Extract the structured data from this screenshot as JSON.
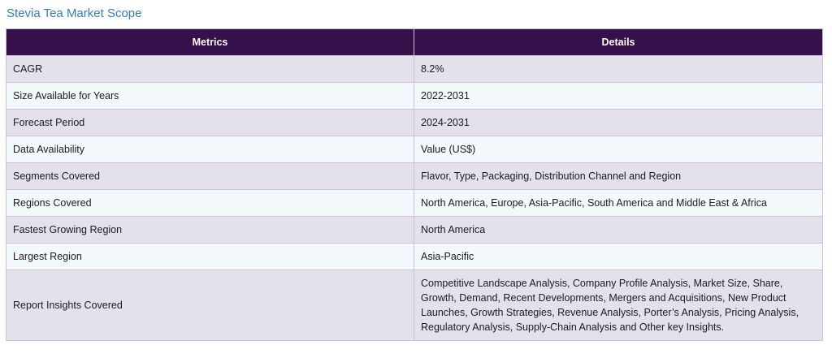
{
  "page": {
    "title": "Stevia Tea Market Scope"
  },
  "table": {
    "headers": [
      "Metrics",
      "Details"
    ],
    "rows": [
      {
        "metric": "CAGR",
        "detail": "8.2%"
      },
      {
        "metric": "Size Available for Years",
        "detail": "2022-2031"
      },
      {
        "metric": "Forecast Period",
        "detail": "2024-2031"
      },
      {
        "metric": "Data Availability",
        "detail": "Value (US$)"
      },
      {
        "metric": "Segments Covered",
        "detail": "Flavor, Type, Packaging, Distribution Channel and Region"
      },
      {
        "metric": "Regions Covered",
        "detail": "North America, Europe, Asia-Pacific, South America and Middle East & Africa"
      },
      {
        "metric": "Fastest Growing Region",
        "detail": "North America"
      },
      {
        "metric": "Largest Region",
        "detail": "Asia-Pacific"
      },
      {
        "metric": "Report Insights Covered",
        "detail": "Competitive Landscape Analysis, Company Profile Analysis, Market Size, Share, Growth, Demand, Recent Developments, Mergers and Acquisitions, New Product Launches, Growth Strategies, Revenue Analysis, Porter’s Analysis, Pricing Analysis, Regulatory Analysis, Supply-Chain Analysis and Other key Insights."
      }
    ]
  },
  "colors": {
    "title": "#2f7fbf",
    "header_bg": "#35104a",
    "row_odd": "#e4e0ec",
    "row_even": "#f2f8fc",
    "border": "#c9c3d3"
  }
}
